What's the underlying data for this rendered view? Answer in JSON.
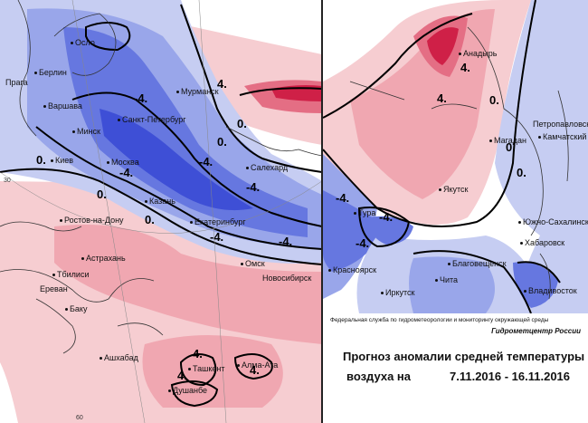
{
  "colors": {
    "warm_light": "#f6cdd1",
    "warm": "#f0a7b1",
    "warm_strong": "#e46e84",
    "warm_extreme": "#cf2047",
    "cold_light": "#c6cdf2",
    "cold": "#99a6ea",
    "cold_strong": "#6677e0",
    "cold_extreme": "#3e4fd6"
  },
  "left_map": {
    "cities": [
      {
        "name": "Осло"
      },
      {
        "name": "Берлин"
      },
      {
        "name": "Прага"
      },
      {
        "name": "Варшава"
      },
      {
        "name": "Минск"
      },
      {
        "name": "Киев"
      },
      {
        "name": "Санкт-Петербург"
      },
      {
        "name": "Москва"
      },
      {
        "name": "Мурманск"
      },
      {
        "name": "Салехард"
      },
      {
        "name": "Казань"
      },
      {
        "name": "Екатеринбург"
      },
      {
        "name": "Ростов-на-Дону"
      },
      {
        "name": "Астрахань"
      },
      {
        "name": "Тбилиси"
      },
      {
        "name": "Ереван"
      },
      {
        "name": "Баку"
      },
      {
        "name": "Ашхабад"
      },
      {
        "name": "Ташкент"
      },
      {
        "name": "Душанбе"
      },
      {
        "name": "Алма-Ата"
      },
      {
        "name": "Омск"
      },
      {
        "name": "Новосибирск"
      }
    ],
    "contour_labels": [
      "-4.",
      "-4.",
      "-4.",
      "-4.",
      "-4.",
      "-4.",
      "0.",
      "0.",
      "0.",
      "0.",
      "0.",
      "4.",
      "4.",
      "4.",
      "4."
    ],
    "grid_labels": [
      "30",
      "60"
    ]
  },
  "right_map": {
    "cities": [
      {
        "name": "Анадырь"
      },
      {
        "name": "Петропавловск"
      },
      {
        "name": "Камчатский"
      },
      {
        "name": "Магадан"
      },
      {
        "name": "Якутск"
      },
      {
        "name": "Тура"
      },
      {
        "name": "Южно-Сахалинск"
      },
      {
        "name": "Хабаровск"
      },
      {
        "name": "Благовещенск"
      },
      {
        "name": "Красноярск"
      },
      {
        "name": "Иркутск"
      },
      {
        "name": "Чита"
      },
      {
        "name": "Владивосток"
      }
    ],
    "contour_labels": [
      "4.",
      "4.",
      "0.",
      "0.",
      "0.",
      "-4.",
      "-4.",
      "-4."
    ]
  },
  "footer": {
    "agency": "Федеральная служба по гидрометеорологии и мониторингу окружающей среды",
    "center": "Гидрометцентр России",
    "title_line1": "Прогноз аномалии средней температуры",
    "title_line2": "воздуха на",
    "dates": "7.11.2016 - 16.11.2016"
  }
}
